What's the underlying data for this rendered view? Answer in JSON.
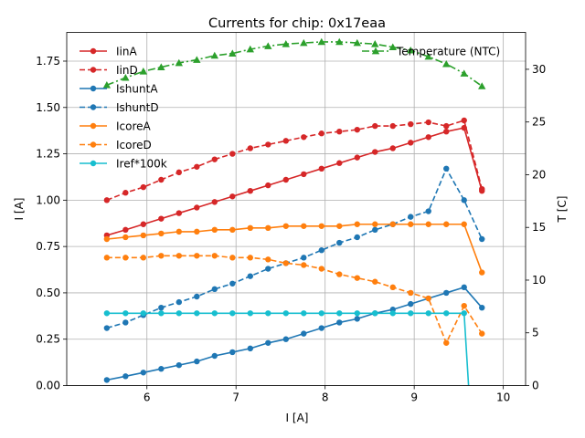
{
  "chart_data": {
    "type": "line",
    "title": "Currents for chip: 0x17eaa",
    "xlabel": "I [A]",
    "ylabel": "I [A]",
    "y2label": "T [C]",
    "xlim": [
      5.1,
      10.25
    ],
    "ylim": [
      0,
      1.905
    ],
    "y2lim": [
      0,
      33.5
    ],
    "grid": true,
    "legend_position": "top-left",
    "xticks": [
      6,
      7,
      8,
      9,
      10
    ],
    "yticks": [
      0.0,
      0.25,
      0.5,
      0.75,
      1.0,
      1.25,
      1.5,
      1.75
    ],
    "y2ticks": [
      0,
      5,
      10,
      15,
      20,
      25,
      30
    ],
    "x": [
      5.55,
      5.76,
      5.96,
      6.16,
      6.36,
      6.56,
      6.76,
      6.96,
      7.16,
      7.36,
      7.56,
      7.76,
      7.96,
      8.16,
      8.36,
      8.56,
      8.76,
      8.96,
      9.16,
      9.36,
      9.56,
      9.76
    ],
    "series": [
      {
        "name": "IinA",
        "axis": "left",
        "color": "#d62728",
        "linestyle": "solid",
        "values": [
          0.81,
          0.84,
          0.87,
          0.9,
          0.93,
          0.96,
          0.99,
          1.02,
          1.05,
          1.08,
          1.11,
          1.14,
          1.17,
          1.2,
          1.23,
          1.26,
          1.28,
          1.31,
          1.34,
          1.37,
          1.39,
          1.05
        ]
      },
      {
        "name": "IinD",
        "axis": "left",
        "color": "#d62728",
        "linestyle": "dashed",
        "values": [
          1.0,
          1.04,
          1.07,
          1.11,
          1.15,
          1.18,
          1.22,
          1.25,
          1.28,
          1.3,
          1.32,
          1.34,
          1.36,
          1.37,
          1.38,
          1.4,
          1.4,
          1.41,
          1.42,
          1.4,
          1.43,
          1.06
        ]
      },
      {
        "name": "IshuntA",
        "axis": "left",
        "color": "#1f77b4",
        "linestyle": "solid",
        "values": [
          0.03,
          0.05,
          0.07,
          0.09,
          0.11,
          0.13,
          0.16,
          0.18,
          0.2,
          0.23,
          0.25,
          0.28,
          0.31,
          0.34,
          0.36,
          0.39,
          0.41,
          0.44,
          0.47,
          0.5,
          0.53,
          0.42
        ]
      },
      {
        "name": "IshuntD",
        "axis": "left",
        "color": "#1f77b4",
        "linestyle": "dashed",
        "values": [
          0.31,
          0.34,
          0.38,
          0.42,
          0.45,
          0.48,
          0.52,
          0.55,
          0.59,
          0.63,
          0.66,
          0.69,
          0.73,
          0.77,
          0.8,
          0.84,
          0.87,
          0.91,
          0.94,
          1.17,
          1.0,
          0.79
        ]
      },
      {
        "name": "IcoreA",
        "axis": "left",
        "color": "#ff7f0e",
        "linestyle": "solid",
        "values": [
          0.79,
          0.8,
          0.81,
          0.82,
          0.83,
          0.83,
          0.84,
          0.84,
          0.85,
          0.85,
          0.86,
          0.86,
          0.86,
          0.86,
          0.87,
          0.87,
          0.87,
          0.87,
          0.87,
          0.87,
          0.87,
          0.61
        ]
      },
      {
        "name": "IcoreD",
        "axis": "left",
        "color": "#ff7f0e",
        "linestyle": "dashed",
        "values": [
          0.69,
          0.69,
          0.69,
          0.7,
          0.7,
          0.7,
          0.7,
          0.69,
          0.69,
          0.68,
          0.66,
          0.65,
          0.63,
          0.6,
          0.58,
          0.56,
          0.53,
          0.5,
          0.47,
          0.23,
          0.43,
          0.28
        ]
      },
      {
        "name": "Iref*100k",
        "axis": "left",
        "color": "#17becf",
        "linestyle": "solid",
        "clip_to_zero_at": 9.61,
        "values": [
          0.39,
          0.39,
          0.39,
          0.39,
          0.39,
          0.39,
          0.39,
          0.39,
          0.39,
          0.39,
          0.39,
          0.39,
          0.39,
          0.39,
          0.39,
          0.39,
          0.39,
          0.39,
          0.39,
          0.39,
          0.39,
          null
        ]
      },
      {
        "name": "Temperature (NTC)",
        "axis": "right",
        "color": "#2ca02c",
        "linestyle": "dashdot",
        "marker": "triangle",
        "values": [
          28.5,
          29.2,
          29.8,
          30.2,
          30.6,
          30.9,
          31.3,
          31.5,
          31.9,
          32.2,
          32.4,
          32.5,
          32.6,
          32.6,
          32.5,
          32.4,
          32.1,
          31.8,
          31.2,
          30.5,
          29.6,
          28.4
        ]
      }
    ]
  }
}
